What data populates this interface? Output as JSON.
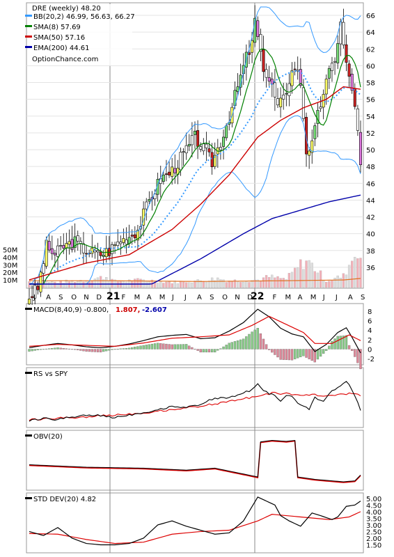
{
  "chart_data": [
    {
      "type": "candlestick",
      "title": "DRE (weekly) 48.20",
      "legend": [
        {
          "label": "BB(20,2) 46.99, 56.63, 66.27",
          "color": "#3399ff"
        },
        {
          "label": "SMA(8) 57.69",
          "color": "#008000"
        },
        {
          "label": "SMA(50) 57.16",
          "color": "#cc0000"
        },
        {
          "label": "EMA(200) 44.61",
          "color": "#0000aa"
        }
      ],
      "watermark": "OptionChance.com",
      "y_ticks": [
        "66",
        "64",
        "62",
        "60",
        "58",
        "56",
        "54",
        "52",
        "50",
        "48",
        "46",
        "44",
        "42",
        "40",
        "38",
        "36"
      ],
      "ylim": [
        34,
        67
      ],
      "volume_ticks": [
        "50M",
        "40M",
        "30M",
        "20M",
        "10M"
      ],
      "x_labels": [
        "J",
        "A",
        "S",
        "O",
        "N",
        "D",
        "21",
        "F",
        "M",
        "A",
        "M",
        "J",
        "J",
        "A",
        "S",
        "O",
        "N",
        "D",
        "22",
        "F",
        "M",
        "A",
        "M",
        "J",
        "J",
        "A",
        "S"
      ],
      "series": {
        "close_anchor": [
          [
            0,
            32.5
          ],
          [
            3,
            33.5
          ],
          [
            6,
            38.5
          ],
          [
            9,
            37.5
          ],
          [
            12,
            38.5
          ],
          [
            16,
            39.0
          ],
          [
            20,
            38.0
          ],
          [
            24,
            37.5
          ],
          [
            28,
            38.0
          ],
          [
            31,
            39.0
          ],
          [
            34,
            39.5
          ],
          [
            38,
            40.5
          ],
          [
            42,
            44.0
          ],
          [
            46,
            46.5
          ],
          [
            50,
            47.5
          ],
          [
            54,
            49.5
          ],
          [
            58,
            51.5
          ],
          [
            61,
            50.0
          ],
          [
            64,
            48.5
          ],
          [
            67,
            51.0
          ],
          [
            70,
            54.0
          ],
          [
            73,
            57.5
          ],
          [
            76,
            61.0
          ],
          [
            78,
            62.5
          ],
          [
            79,
            65.5
          ],
          [
            81,
            61.0
          ],
          [
            83,
            59.0
          ],
          [
            85,
            57.5
          ],
          [
            87,
            55.0
          ],
          [
            89,
            56.0
          ],
          [
            91,
            58.5
          ],
          [
            93,
            60.0
          ],
          [
            95,
            58.0
          ],
          [
            97,
            50.0
          ],
          [
            99,
            50.5
          ],
          [
            101,
            54.0
          ],
          [
            103,
            57.0
          ],
          [
            105,
            59.0
          ],
          [
            107,
            61.0
          ],
          [
            109,
            65.0
          ],
          [
            111,
            60.0
          ],
          [
            113,
            57.5
          ],
          [
            115,
            52.0
          ],
          [
            116,
            48.2
          ]
        ],
        "sma50_anchor": [
          [
            0,
            34.5
          ],
          [
            20,
            36.5
          ],
          [
            35,
            37.5
          ],
          [
            50,
            40.5
          ],
          [
            60,
            43.5
          ],
          [
            70,
            47.0
          ],
          [
            80,
            51.5
          ],
          [
            88,
            53.5
          ],
          [
            96,
            55.0
          ],
          [
            104,
            56.0
          ],
          [
            110,
            57.5
          ],
          [
            116,
            57.2
          ]
        ],
        "ema200_anchor": [
          [
            0,
            30.0
          ],
          [
            20,
            31.5
          ],
          [
            40,
            33.5
          ],
          [
            60,
            37.0
          ],
          [
            75,
            40.0
          ],
          [
            85,
            41.8
          ],
          [
            95,
            42.8
          ],
          [
            105,
            43.8
          ],
          [
            116,
            44.6
          ]
        ],
        "volume_anchor": [
          [
            0,
            8
          ],
          [
            10,
            7
          ],
          [
            20,
            10
          ],
          [
            27,
            14
          ],
          [
            30,
            8
          ],
          [
            40,
            10
          ],
          [
            50,
            7
          ],
          [
            60,
            9
          ],
          [
            66,
            12
          ],
          [
            70,
            9
          ],
          [
            80,
            10
          ],
          [
            84,
            14
          ],
          [
            90,
            11
          ],
          [
            95,
            30
          ],
          [
            97,
            36
          ],
          [
            100,
            26
          ],
          [
            104,
            9
          ],
          [
            110,
            15
          ],
          [
            115,
            52
          ],
          [
            116,
            40
          ]
        ]
      }
    },
    {
      "type": "line",
      "title": "MACD(8,40,9) -0.800,",
      "values_text": [
        {
          "label": "1.807,",
          "color": "#cc0000"
        },
        {
          "label": "-2.607",
          "color": "#0000aa"
        }
      ],
      "y_ticks": [
        "8",
        "6",
        "4",
        "2",
        "0",
        "-2"
      ],
      "ylim": [
        -3,
        9
      ],
      "macd_anchor": [
        [
          0,
          0.3
        ],
        [
          5,
          0.8
        ],
        [
          10,
          1.2
        ],
        [
          15,
          0.9
        ],
        [
          20,
          0.5
        ],
        [
          25,
          0.3
        ],
        [
          30,
          0.6
        ],
        [
          35,
          1.1
        ],
        [
          40,
          1.8
        ],
        [
          45,
          2.6
        ],
        [
          50,
          2.9
        ],
        [
          55,
          3.1
        ],
        [
          60,
          2.2
        ],
        [
          65,
          2.4
        ],
        [
          70,
          3.8
        ],
        [
          75,
          5.6
        ],
        [
          80,
          8.4
        ],
        [
          84,
          6.8
        ],
        [
          88,
          4.4
        ],
        [
          92,
          3.2
        ],
        [
          96,
          2.6
        ],
        [
          100,
          -0.5
        ],
        [
          104,
          1.0
        ],
        [
          108,
          3.5
        ],
        [
          111,
          4.5
        ],
        [
          113,
          2.5
        ],
        [
          116,
          -0.8
        ]
      ],
      "signal_anchor": [
        [
          0,
          0.6
        ],
        [
          10,
          1.0
        ],
        [
          20,
          0.8
        ],
        [
          30,
          0.6
        ],
        [
          40,
          1.3
        ],
        [
          50,
          2.3
        ],
        [
          60,
          2.6
        ],
        [
          70,
          3.0
        ],
        [
          78,
          5.0
        ],
        [
          84,
          6.9
        ],
        [
          90,
          5.2
        ],
        [
          96,
          3.5
        ],
        [
          100,
          1.2
        ],
        [
          106,
          1.2
        ],
        [
          112,
          3.0
        ],
        [
          116,
          1.8
        ]
      ]
    },
    {
      "type": "line",
      "title": "RS vs SPY",
      "rs_anchor": [
        [
          0,
          0.08
        ],
        [
          5,
          0.13
        ],
        [
          10,
          0.1
        ],
        [
          15,
          0.16
        ],
        [
          20,
          0.2
        ],
        [
          25,
          0.18
        ],
        [
          30,
          0.15
        ],
        [
          35,
          0.2
        ],
        [
          40,
          0.25
        ],
        [
          45,
          0.3
        ],
        [
          50,
          0.38
        ],
        [
          55,
          0.35
        ],
        [
          60,
          0.42
        ],
        [
          65,
          0.55
        ],
        [
          70,
          0.55
        ],
        [
          75,
          0.65
        ],
        [
          78,
          0.72
        ],
        [
          80,
          0.85
        ],
        [
          82,
          0.7
        ],
        [
          85,
          0.62
        ],
        [
          88,
          0.5
        ],
        [
          90,
          0.58
        ],
        [
          92,
          0.6
        ],
        [
          94,
          0.45
        ],
        [
          96,
          0.4
        ],
        [
          98,
          0.32
        ],
        [
          100,
          0.55
        ],
        [
          103,
          0.5
        ],
        [
          106,
          0.7
        ],
        [
          109,
          0.78
        ],
        [
          111,
          0.9
        ],
        [
          113,
          0.72
        ],
        [
          115,
          0.45
        ],
        [
          116,
          0.3
        ]
      ],
      "rs_ma_anchor": [
        [
          0,
          0.1
        ],
        [
          20,
          0.16
        ],
        [
          40,
          0.24
        ],
        [
          60,
          0.38
        ],
        [
          75,
          0.53
        ],
        [
          85,
          0.65
        ],
        [
          95,
          0.62
        ],
        [
          105,
          0.6
        ],
        [
          110,
          0.62
        ],
        [
          113,
          0.65
        ],
        [
          116,
          0.6
        ]
      ]
    },
    {
      "type": "line",
      "title": "OBV(20)",
      "obv_anchor": [
        [
          0,
          0.45
        ],
        [
          20,
          0.4
        ],
        [
          40,
          0.38
        ],
        [
          55,
          0.34
        ],
        [
          65,
          0.38
        ],
        [
          75,
          0.26
        ],
        [
          80,
          0.2
        ],
        [
          81,
          0.92
        ],
        [
          85,
          0.95
        ],
        [
          90,
          0.93
        ],
        [
          93,
          0.95
        ],
        [
          94,
          0.2
        ],
        [
          100,
          0.15
        ],
        [
          110,
          0.1
        ],
        [
          114,
          0.12
        ],
        [
          116,
          0.24
        ]
      ]
    },
    {
      "type": "line",
      "title": "STD DEV(20) 4.82",
      "y_ticks": [
        "5.00",
        "4.50",
        "4.00",
        "3.50",
        "3.00",
        "2.50",
        "2.00",
        "1.50"
      ],
      "ylim": [
        1.0,
        5.2
      ],
      "std_anchor": [
        [
          0,
          2.5
        ],
        [
          5,
          2.2
        ],
        [
          10,
          2.8
        ],
        [
          15,
          2.0
        ],
        [
          20,
          1.6
        ],
        [
          25,
          1.5
        ],
        [
          30,
          1.5
        ],
        [
          35,
          1.6
        ],
        [
          40,
          2.0
        ],
        [
          45,
          3.0
        ],
        [
          50,
          3.3
        ],
        [
          55,
          2.9
        ],
        [
          60,
          2.6
        ],
        [
          65,
          2.3
        ],
        [
          70,
          2.4
        ],
        [
          75,
          3.3
        ],
        [
          80,
          5.1
        ],
        [
          83,
          4.8
        ],
        [
          86,
          4.5
        ],
        [
          88,
          3.7
        ],
        [
          91,
          3.3
        ],
        [
          95,
          2.9
        ],
        [
          99,
          3.9
        ],
        [
          102,
          3.7
        ],
        [
          106,
          3.4
        ],
        [
          108,
          3.6
        ],
        [
          111,
          4.4
        ],
        [
          114,
          4.5
        ],
        [
          116,
          4.8
        ]
      ],
      "std_ma_anchor": [
        [
          0,
          2.35
        ],
        [
          10,
          2.3
        ],
        [
          20,
          1.9
        ],
        [
          30,
          1.6
        ],
        [
          40,
          1.7
        ],
        [
          50,
          2.3
        ],
        [
          60,
          2.5
        ],
        [
          70,
          2.6
        ],
        [
          80,
          3.3
        ],
        [
          85,
          3.8
        ],
        [
          95,
          3.6
        ],
        [
          105,
          3.4
        ],
        [
          112,
          3.6
        ],
        [
          116,
          4.0
        ]
      ]
    }
  ]
}
